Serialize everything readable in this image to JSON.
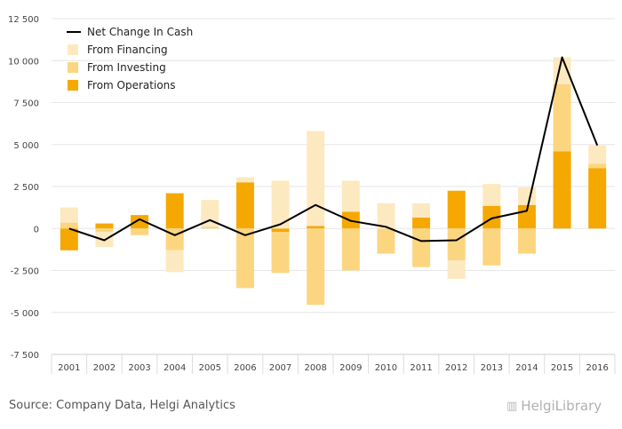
{
  "chart_data": {
    "type": "bar",
    "stacked": true,
    "categories": [
      "2001",
      "2002",
      "2003",
      "2004",
      "2005",
      "2006",
      "2007",
      "2008",
      "2009",
      "2010",
      "2011",
      "2012",
      "2013",
      "2014",
      "2015",
      "2016"
    ],
    "series": [
      {
        "name": "From Operations",
        "kind": "bar",
        "color": "#f5a800",
        "values": [
          -1300,
          300,
          800,
          2100,
          0,
          2750,
          -200,
          150,
          1000,
          0,
          650,
          2250,
          1350,
          1400,
          4600,
          3600
        ]
      },
      {
        "name": "From Investing",
        "kind": "bar",
        "color": "#fcd580",
        "values": [
          350,
          -200,
          -400,
          -1300,
          100,
          -3550,
          -2450,
          -4550,
          -2500,
          -1500,
          -2300,
          -1900,
          -2200,
          -1500,
          4000,
          250
        ]
      },
      {
        "name": "From Financing",
        "kind": "bar",
        "color": "#fde9c0",
        "values": [
          900,
          -900,
          0,
          -1300,
          1600,
          300,
          2850,
          5650,
          1850,
          1500,
          850,
          -1100,
          1300,
          1050,
          1600,
          1100
        ]
      },
      {
        "name": "Net Change In Cash",
        "kind": "line",
        "color": "#000000",
        "values": [
          0,
          -700,
          550,
          -400,
          500,
          -400,
          250,
          1400,
          450,
          100,
          -750,
          -700,
          600,
          1050,
          10200,
          4950
        ]
      }
    ],
    "ylim": [
      -7500,
      12500
    ],
    "yticks": [
      -7500,
      -5000,
      -2500,
      0,
      2500,
      5000,
      7500,
      10000,
      12500
    ],
    "ytick_labels": [
      "-7 500",
      "-5 000",
      "-2 500",
      "0",
      "2 500",
      "5 000",
      "7 500",
      "10 000",
      "12 500"
    ],
    "grid": "horizontal",
    "legend_position": "top-left",
    "legend": [
      "Net Change In Cash",
      "From Financing",
      "From Investing",
      "From Operations"
    ]
  },
  "footer": {
    "source": "Source: Company Data, Helgi Analytics",
    "brand": "HelgiLibrary"
  }
}
